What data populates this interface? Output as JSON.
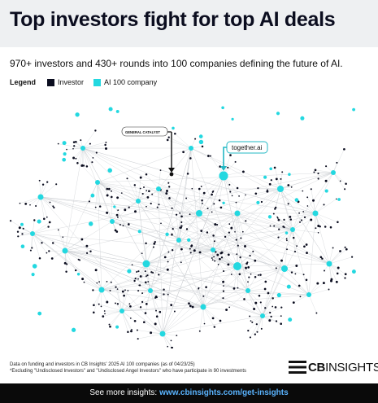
{
  "header": {
    "title": "Top investors fight for top AI deals"
  },
  "subtitle": "970+ investors and 430+ rounds into 100 companies defining the future of AI.",
  "legend": {
    "title": "Legend",
    "items": [
      {
        "label": "Investor",
        "color": "#0b0d1f"
      },
      {
        "label": "AI 100 company",
        "color": "#23d8e0"
      }
    ]
  },
  "callouts": {
    "investor_label": "GENERAL CATALYST",
    "company_label": "together.ai"
  },
  "colors": {
    "investor": "#0b0d1f",
    "company": "#23d8e0",
    "edge": "#c8ccd0",
    "footer_bg": "#0a0a0a",
    "link": "#5ab4ff"
  },
  "footnotes": {
    "line1": "Data on funding and investors in CB Insights' 2025 AI 100 companies (as of 04/23/25)",
    "line2": "*Excluding \"Undisclosed Investors\" and \"Undisclosed Angel Investors\" who have participate in 90 investments"
  },
  "logo": {
    "bold": "CB",
    "thin": "INSIGHTS"
  },
  "footer": {
    "prefix": "See more insights:",
    "link": "www.cbinsights.com/get-insights"
  }
}
